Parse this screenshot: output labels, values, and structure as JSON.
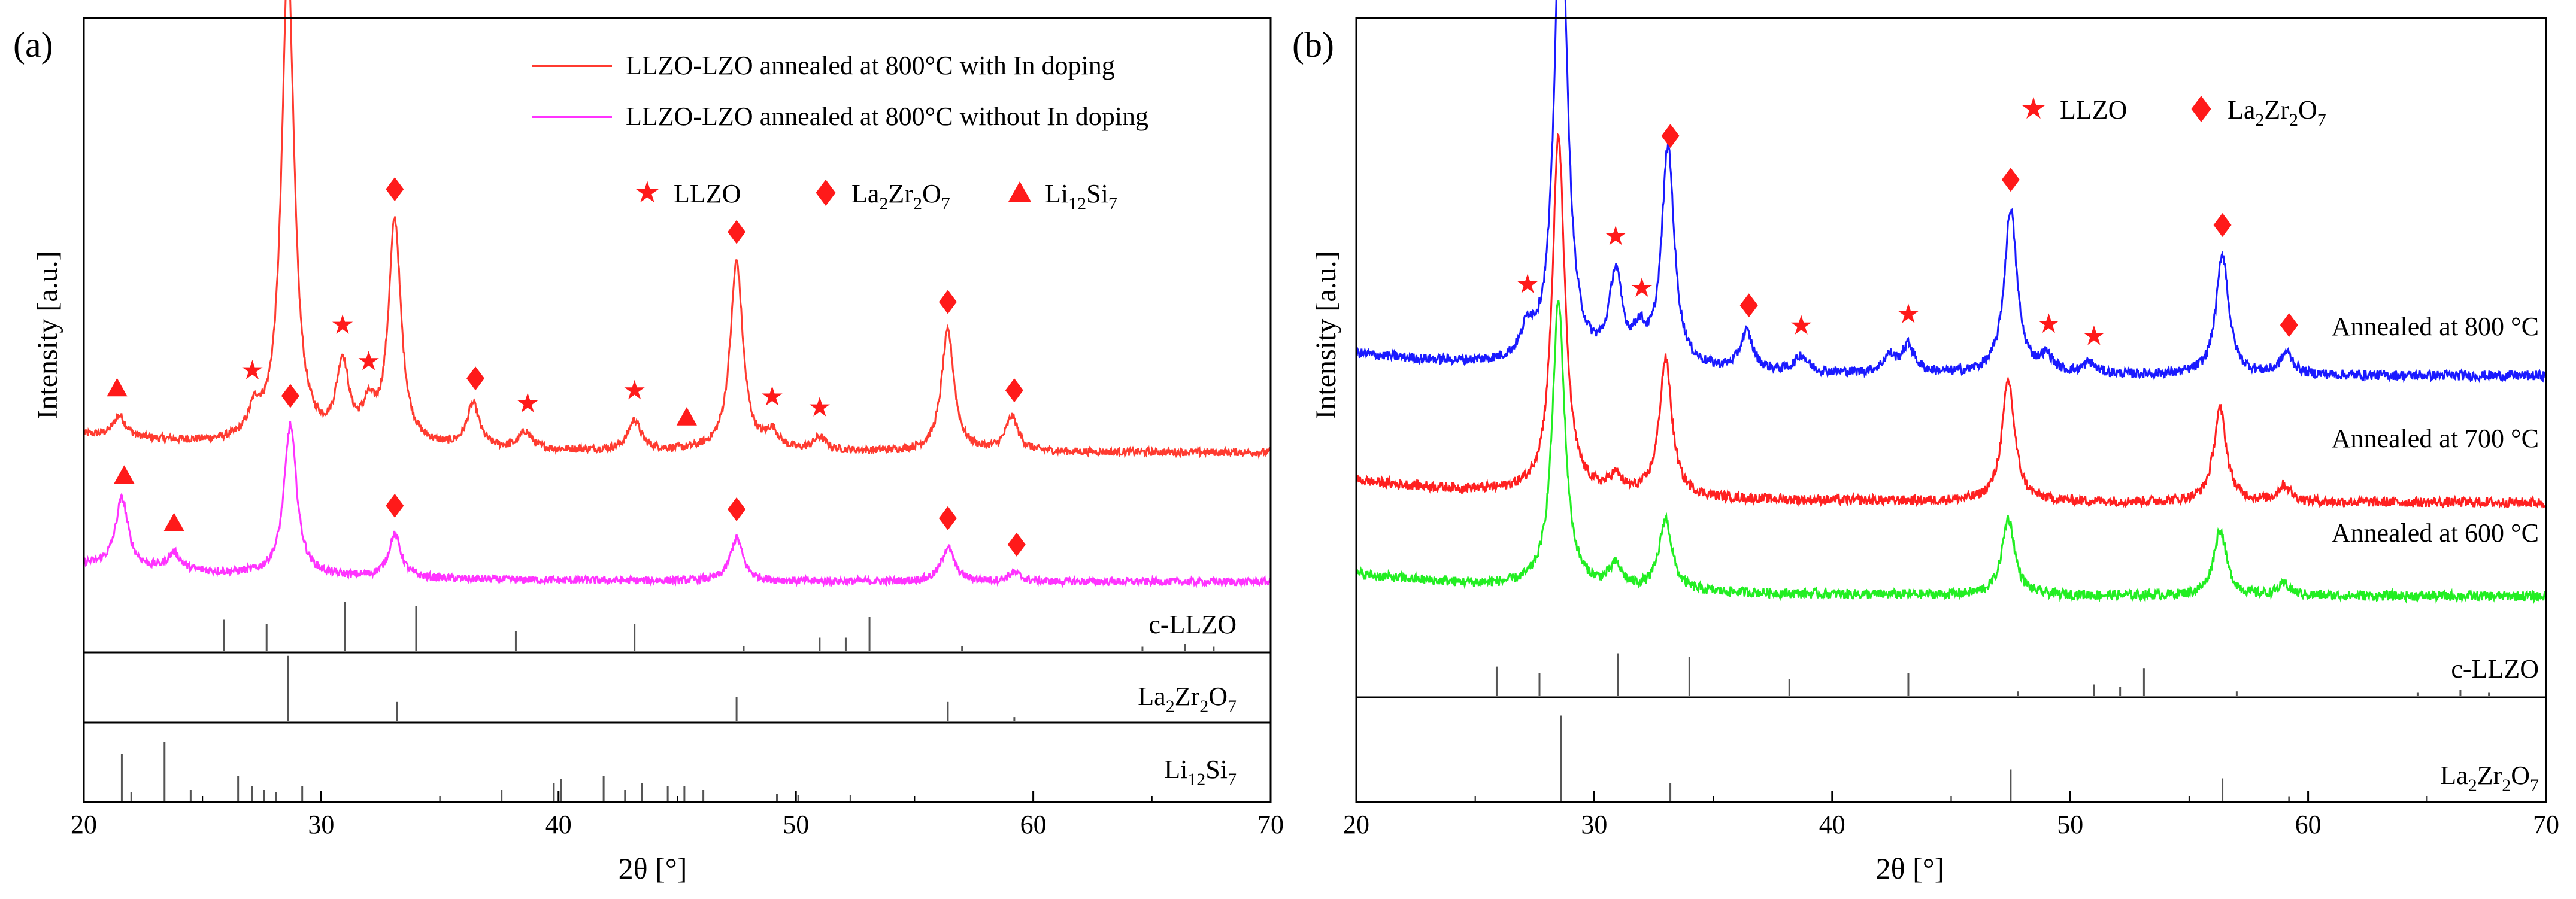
{
  "figure": {
    "panels": [
      {
        "label": "(a)",
        "ylabel": "Intensity [a.u.]",
        "xlabel": "2θ [°]",
        "legend_lines": [
          {
            "text": "LLZO-LZO annealed at 800°C with In doping",
            "color": "#ff3b30"
          },
          {
            "text": "LLZO-LZO annealed at 800°C without In doping",
            "color": "#ff33ff"
          }
        ],
        "marker_legend": [
          {
            "symbol": "star",
            "text": "LLZO"
          },
          {
            "symbol": "diamond",
            "text": "La",
            "sub1": "2",
            "mid": "Zr",
            "sub2": "2",
            "mid2": "O",
            "sub3": "7"
          },
          {
            "symbol": "triangle",
            "text": "Li",
            "sub1": "12",
            "mid": "Si",
            "sub2": "7"
          }
        ],
        "ref_labels": [
          "c-LLZO",
          "La2Zr2O7",
          "Li12Si7"
        ]
      },
      {
        "label": "(b)",
        "ylabel": "Intensity [a.u.]",
        "xlabel": "2θ [°]",
        "marker_legend": [
          {
            "symbol": "star",
            "text": "LLZO"
          },
          {
            "symbol": "diamond",
            "text": "La",
            "sub1": "2",
            "mid": "Zr",
            "sub2": "2",
            "mid2": "O",
            "sub3": "7"
          }
        ],
        "curve_labels": [
          "Annealed at 800 °C",
          "Annealed at 700 °C",
          "Annealed at 600 °C"
        ],
        "ref_labels": [
          "c-LLZO",
          "La2Zr2O7"
        ]
      }
    ]
  },
  "chart_data": [
    {
      "type": "line",
      "panel": "(a)",
      "xlabel": "2θ [°]",
      "ylabel": "Intensity [a.u.]",
      "xlim": [
        20,
        70
      ],
      "xticks": [
        20,
        30,
        40,
        50,
        60,
        70
      ],
      "series": [
        {
          "name": "LLZO-LZO annealed at 800°C with In doping",
          "color": "#ff3b30",
          "baseline": 0.45,
          "peaks": [
            [
              21.5,
              0.05
            ],
            [
              27.2,
              0.06
            ],
            [
              28.6,
              1.12
            ],
            [
              30.9,
              0.18
            ],
            [
              32.0,
              0.07
            ],
            [
              33.1,
              0.52
            ],
            [
              36.4,
              0.1
            ],
            [
              38.6,
              0.04
            ],
            [
              43.2,
              0.07
            ],
            [
              47.5,
              0.44
            ],
            [
              49.0,
              0.04
            ],
            [
              51.0,
              0.03
            ],
            [
              56.4,
              0.28
            ],
            [
              59.1,
              0.08
            ]
          ]
        },
        {
          "name": "LLZO-LZO annealed at 800°C without In doping",
          "color": "#ff33ff",
          "baseline": 0.15,
          "peaks": [
            [
              21.6,
              0.16
            ],
            [
              23.8,
              0.04
            ],
            [
              28.7,
              0.35
            ],
            [
              33.1,
              0.1
            ],
            [
              47.5,
              0.1
            ],
            [
              56.4,
              0.08
            ],
            [
              59.2,
              0.02
            ]
          ]
        }
      ],
      "markers": [
        {
          "symbol": "triangle",
          "x": [
            21.4,
            45.4
          ],
          "series": 0
        },
        {
          "symbol": "star",
          "x": [
            27.1,
            30.9,
            32.0,
            38.7,
            43.2,
            49.0,
            51.0
          ],
          "series": 0
        },
        {
          "symbol": "diamond",
          "x": [
            28.6,
            33.1,
            36.5,
            47.5,
            56.4,
            59.2
          ],
          "series": 0
        },
        {
          "symbol": "triangle",
          "x": [
            21.7,
            23.8
          ],
          "series": 1
        },
        {
          "symbol": "diamond",
          "x": [
            28.7,
            33.1,
            47.5,
            56.4,
            59.3
          ],
          "series": 1
        }
      ],
      "reference_patterns": [
        {
          "name": "c-LLZO",
          "lines": [
            [
              25.9,
              0.35
            ],
            [
              27.7,
              0.3
            ],
            [
              31.0,
              0.55
            ],
            [
              34.0,
              0.5
            ],
            [
              38.2,
              0.22
            ],
            [
              43.2,
              0.3
            ],
            [
              47.8,
              0.06
            ],
            [
              51.0,
              0.15
            ],
            [
              52.1,
              0.15
            ],
            [
              53.1,
              0.38
            ],
            [
              57.0,
              0.06
            ],
            [
              64.6,
              0.05
            ],
            [
              66.4,
              0.08
            ],
            [
              67.6,
              0.05
            ]
          ]
        },
        {
          "name": "La2Zr2O7",
          "lines": [
            [
              28.6,
              0.95
            ],
            [
              33.2,
              0.28
            ],
            [
              47.5,
              0.35
            ],
            [
              56.4,
              0.28
            ],
            [
              59.2,
              0.06
            ]
          ]
        },
        {
          "name": "Li12Si7",
          "lines": [
            [
              21.6,
              0.65
            ],
            [
              22.0,
              0.12
            ],
            [
              23.4,
              0.82
            ],
            [
              24.5,
              0.15
            ],
            [
              26.5,
              0.35
            ],
            [
              27.1,
              0.2
            ],
            [
              27.6,
              0.15
            ],
            [
              28.1,
              0.12
            ],
            [
              29.2,
              0.2
            ],
            [
              37.6,
              0.15
            ],
            [
              39.8,
              0.25
            ],
            [
              40.1,
              0.3
            ],
            [
              41.9,
              0.35
            ],
            [
              42.8,
              0.15
            ],
            [
              43.5,
              0.25
            ],
            [
              44.6,
              0.2
            ],
            [
              45.3,
              0.2
            ],
            [
              46.1,
              0.15
            ],
            [
              49.2,
              0.1
            ],
            [
              50.1,
              0.08
            ],
            [
              52.3,
              0.08
            ]
          ]
        }
      ]
    },
    {
      "type": "line",
      "panel": "(b)",
      "xlabel": "2θ [°]",
      "ylabel": "Intensity [a.u.]",
      "xlim": [
        20,
        70
      ],
      "xticks": [
        20,
        30,
        40,
        50,
        60,
        70
      ],
      "series": [
        {
          "name": "Annealed at 800 °C",
          "color": "#1a1aff",
          "baseline": 0.6,
          "peaks": [
            [
              27.2,
              0.05
            ],
            [
              28.6,
              0.9
            ],
            [
              30.9,
              0.16
            ],
            [
              31.9,
              0.05
            ],
            [
              33.1,
              0.4
            ],
            [
              36.4,
              0.07
            ],
            [
              38.7,
              0.03
            ],
            [
              42.4,
              0.03
            ],
            [
              43.2,
              0.05
            ],
            [
              47.5,
              0.3
            ],
            [
              49.0,
              0.03
            ],
            [
              50.8,
              0.02
            ],
            [
              56.4,
              0.22
            ],
            [
              59.1,
              0.04
            ]
          ]
        },
        {
          "name": "Annealed at 700 °C",
          "color": "#ff2020",
          "baseline": 0.37,
          "peaks": [
            [
              28.5,
              0.65
            ],
            [
              30.9,
              0.03
            ],
            [
              33.0,
              0.25
            ],
            [
              47.4,
              0.22
            ],
            [
              56.3,
              0.17
            ],
            [
              59.0,
              0.03
            ]
          ]
        },
        {
          "name": "Annealed at 600 °C",
          "color": "#22ee22",
          "baseline": 0.2,
          "peaks": [
            [
              28.5,
              0.52
            ],
            [
              30.9,
              0.04
            ],
            [
              33.0,
              0.13
            ],
            [
              47.4,
              0.14
            ],
            [
              56.3,
              0.12
            ],
            [
              59.0,
              0.02
            ]
          ]
        }
      ],
      "markers": [
        {
          "symbol": "diamond",
          "x": [
            28.6,
            33.2,
            36.5,
            47.5,
            56.4,
            59.2
          ],
          "series": 0
        },
        {
          "symbol": "star",
          "x": [
            27.2,
            30.9,
            32.0,
            38.7,
            43.2,
            49.1,
            51.0
          ],
          "series": 0
        }
      ],
      "reference_patterns": [
        {
          "name": "c-LLZO",
          "lines": [
            [
              25.9,
              0.38
            ],
            [
              27.7,
              0.3
            ],
            [
              31.0,
              0.55
            ],
            [
              34.0,
              0.5
            ],
            [
              38.2,
              0.22
            ],
            [
              43.2,
              0.3
            ],
            [
              47.8,
              0.06
            ],
            [
              51.0,
              0.15
            ],
            [
              52.1,
              0.12
            ],
            [
              53.1,
              0.36
            ],
            [
              57.0,
              0.06
            ],
            [
              64.6,
              0.05
            ],
            [
              66.4,
              0.08
            ],
            [
              67.6,
              0.05
            ]
          ]
        },
        {
          "name": "La2Zr2O7",
          "lines": [
            [
              28.6,
              0.95
            ],
            [
              33.2,
              0.2
            ],
            [
              47.5,
              0.35
            ],
            [
              56.4,
              0.25
            ],
            [
              59.2,
              0.05
            ]
          ]
        }
      ]
    }
  ]
}
